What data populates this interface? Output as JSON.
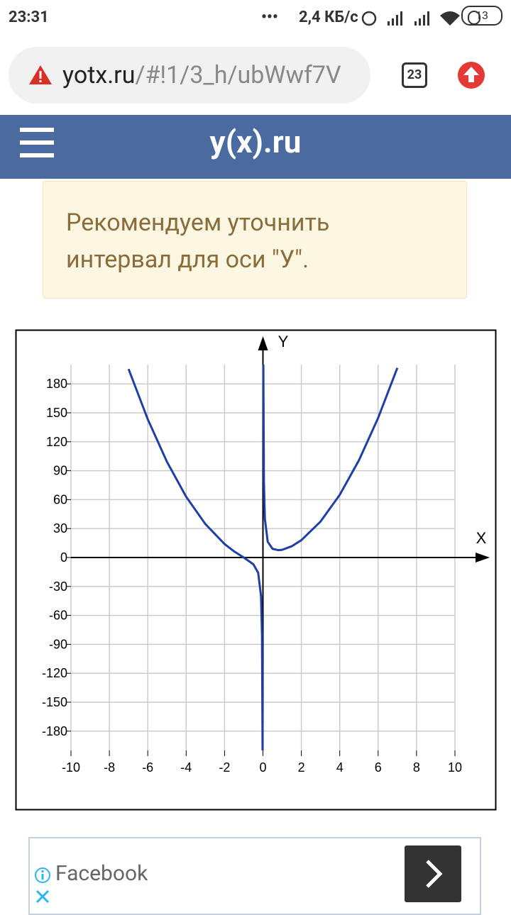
{
  "status_bar": {
    "time": "23:31",
    "speed": "2,4 КБ/с",
    "battery": "13"
  },
  "browser": {
    "url_host": "yotx.ru",
    "url_path": "/#!1/3_h/ubWwf7V",
    "tabs": "23"
  },
  "header": {
    "title": "y(x).ru"
  },
  "alert": {
    "lines": [
      "Рекомендуем уточнить",
      "интервал для оси \"У\"."
    ]
  },
  "chart_data": {
    "type": "line",
    "x_label": "X",
    "y_label": "Y",
    "x": [
      -7,
      -6,
      -5,
      -4,
      -3,
      -2,
      -1.5,
      -1,
      -0.5,
      -0.25,
      -0.1,
      -0.05,
      -0.02,
      0,
      0.02,
      0.05,
      0.1,
      0.25,
      0.5,
      0.8,
      1,
      1.5,
      2,
      3,
      4,
      5,
      6,
      7
    ],
    "series": [
      {
        "color": "#1f3fa8",
        "values": [
          195.4,
          143.3,
          99.2,
          63,
          34.7,
          14,
          6.3,
          0,
          -7,
          -15.8,
          -40,
          -80,
          -200,
          null,
          200,
          80,
          40,
          16.3,
          9,
          7.6,
          8,
          11.7,
          18,
          37.3,
          65,
          100.8,
          144.7,
          196.6
        ]
      }
    ],
    "xlim": [
      -10,
      10
    ],
    "ylim": [
      -200,
      200
    ],
    "xticks": [
      -10,
      -8,
      -6,
      -4,
      -2,
      0,
      2,
      4,
      6,
      8,
      10
    ],
    "yticks": [
      -180,
      -150,
      -120,
      -90,
      -60,
      -30,
      0,
      30,
      60,
      90,
      120,
      150,
      180
    ],
    "grid": true
  },
  "ad": {
    "text": "Facebook"
  }
}
